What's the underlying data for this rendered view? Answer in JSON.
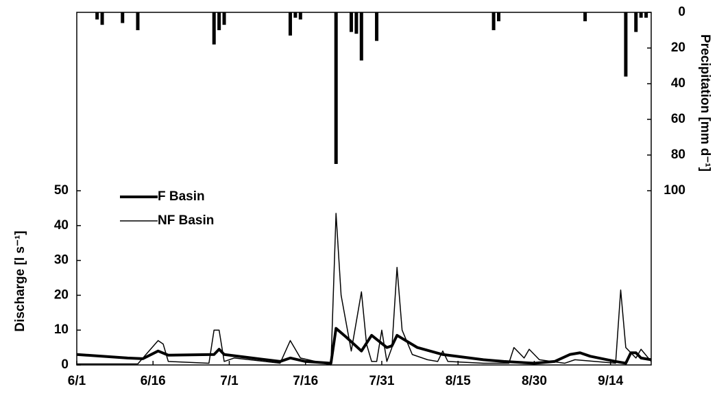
{
  "chart_data": {
    "type": "line",
    "ylabel": "Discharge  [l s⁻¹]",
    "y2label": "Precipitation  [mm d⁻¹]",
    "xlim": [
      0,
      113
    ],
    "xticks": [
      {
        "value": 0,
        "label": "6/1"
      },
      {
        "value": 15,
        "label": "6/16"
      },
      {
        "value": 30,
        "label": "7/1"
      },
      {
        "value": 45,
        "label": "7/16"
      },
      {
        "value": 60,
        "label": "7/31"
      },
      {
        "value": 75,
        "label": "8/15"
      },
      {
        "value": 90,
        "label": "8/30"
      },
      {
        "value": 105,
        "label": "9/14"
      }
    ],
    "ylim": [
      0,
      101.2
    ],
    "yticks": [
      0,
      10,
      20,
      30,
      40,
      50
    ],
    "y2lim": [
      0,
      197.7
    ],
    "y2ticks": [
      0,
      20,
      40,
      60,
      80,
      100
    ],
    "y2_inverted": true,
    "legend": "left",
    "series": [
      {
        "name": "F Basin",
        "type": "line",
        "color": "#000000",
        "width": 4,
        "x": [
          0,
          10,
          13,
          16,
          18,
          27,
          28,
          29,
          40,
          42,
          45,
          50,
          51,
          53,
          56,
          58,
          61,
          62,
          63,
          67,
          72,
          80,
          84,
          90,
          94,
          97,
          99,
          101,
          106,
          108,
          109,
          110,
          111,
          113
        ],
        "values": [
          3,
          2,
          1.8,
          4,
          2.8,
          3,
          4.5,
          3,
          1,
          2,
          1,
          0.5,
          10.5,
          8,
          4,
          8.5,
          5,
          5.5,
          8.5,
          5,
          3,
          1.5,
          1,
          0.5,
          1,
          3,
          3.5,
          2.5,
          1,
          0.5,
          3.5,
          3.5,
          2,
          1.5
        ]
      },
      {
        "name": "NF Basin",
        "type": "line",
        "color": "#000000",
        "width": 1.5,
        "x": [
          0,
          12,
          16,
          17,
          18,
          26,
          27,
          28,
          29,
          31,
          40,
          42,
          44,
          50,
          51,
          52,
          54,
          56,
          57,
          58,
          59,
          60,
          61,
          62,
          63,
          64,
          66,
          69,
          71,
          72,
          73,
          80,
          85,
          86,
          88,
          89,
          91,
          96,
          98,
          106,
          107,
          108,
          110,
          111,
          113
        ],
        "values": [
          0.3,
          0.3,
          7,
          6,
          1,
          0.5,
          10,
          10,
          1,
          2,
          0.5,
          7,
          2,
          0,
          43.5,
          20,
          4,
          21,
          6,
          1,
          1,
          10,
          1,
          5,
          28,
          10,
          3,
          1.5,
          1,
          4,
          1,
          0.5,
          0.5,
          5,
          2,
          4.5,
          1.5,
          0.5,
          1.5,
          0.5,
          21.5,
          5,
          2,
          4.5,
          1
        ]
      },
      {
        "type": "bar",
        "axis": "y2",
        "color": "#000000",
        "x": [
          4,
          5,
          9,
          12,
          27,
          28,
          29,
          42,
          43,
          44,
          51,
          54,
          55,
          56,
          59,
          82,
          83,
          100,
          108,
          110,
          111,
          112
        ],
        "values": [
          4,
          7,
          6,
          10,
          18,
          10,
          7,
          13,
          3,
          4,
          85,
          11,
          12,
          27,
          16,
          10,
          5,
          5,
          36,
          11,
          3,
          3
        ]
      }
    ]
  }
}
